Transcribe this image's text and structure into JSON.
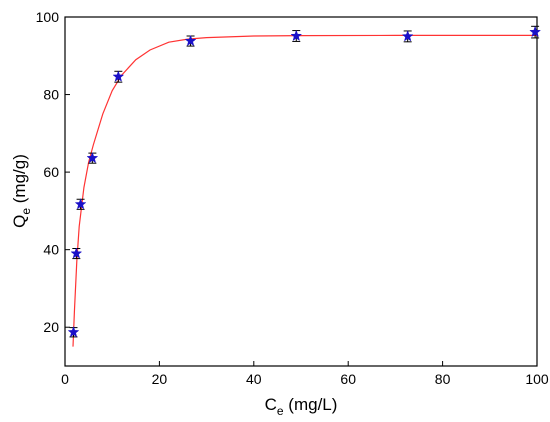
{
  "chart_data": {
    "type": "scatter",
    "title": "",
    "xlabel": {
      "main": "C",
      "sub": "e",
      "rest": " (mg/L)"
    },
    "ylabel": {
      "main": "Q",
      "sub": "e",
      "rest": " (mg/g)"
    },
    "xlim": [
      0,
      100
    ],
    "ylim": [
      10,
      100
    ],
    "xticks": [
      "0",
      "20",
      "40",
      "60",
      "80",
      "100"
    ],
    "yticks": [
      "20",
      "40",
      "60",
      "80",
      "100"
    ],
    "grid": false,
    "legend": "none",
    "series": [
      {
        "kind": "points",
        "marker": "star",
        "color": "#1a10c8",
        "errorbar_color": "#000000",
        "points": [
          {
            "x": 1.8,
            "y": 18.7,
            "err": 1.2
          },
          {
            "x": 2.4,
            "y": 39.0,
            "err": 1.3
          },
          {
            "x": 3.3,
            "y": 51.7,
            "err": 1.3
          },
          {
            "x": 5.8,
            "y": 63.6,
            "err": 1.3
          },
          {
            "x": 11.3,
            "y": 84.6,
            "err": 1.4
          },
          {
            "x": 26.6,
            "y": 93.8,
            "err": 1.3
          },
          {
            "x": 49.0,
            "y": 95.1,
            "err": 1.4
          },
          {
            "x": 72.6,
            "y": 95.0,
            "err": 1.4
          },
          {
            "x": 99.6,
            "y": 96.1,
            "err": 1.5
          }
        ]
      },
      {
        "kind": "fit-line",
        "color": "#ff3333",
        "points": [
          {
            "x": 1.7,
            "y": 15.0
          },
          {
            "x": 2.0,
            "y": 24.0
          },
          {
            "x": 2.5,
            "y": 37.0
          },
          {
            "x": 3.0,
            "y": 46.0
          },
          {
            "x": 4.0,
            "y": 56.0
          },
          {
            "x": 5.0,
            "y": 62.5
          },
          {
            "x": 6.0,
            "y": 67.0
          },
          {
            "x": 8.0,
            "y": 75.0
          },
          {
            "x": 10.0,
            "y": 81.0
          },
          {
            "x": 12.0,
            "y": 85.0
          },
          {
            "x": 15.0,
            "y": 89.0
          },
          {
            "x": 18.0,
            "y": 91.5
          },
          {
            "x": 22.0,
            "y": 93.5
          },
          {
            "x": 26.0,
            "y": 94.3
          },
          {
            "x": 30.0,
            "y": 94.7
          },
          {
            "x": 40.0,
            "y": 95.1
          },
          {
            "x": 50.0,
            "y": 95.2
          },
          {
            "x": 70.0,
            "y": 95.25
          },
          {
            "x": 100.0,
            "y": 95.25
          }
        ]
      }
    ]
  }
}
